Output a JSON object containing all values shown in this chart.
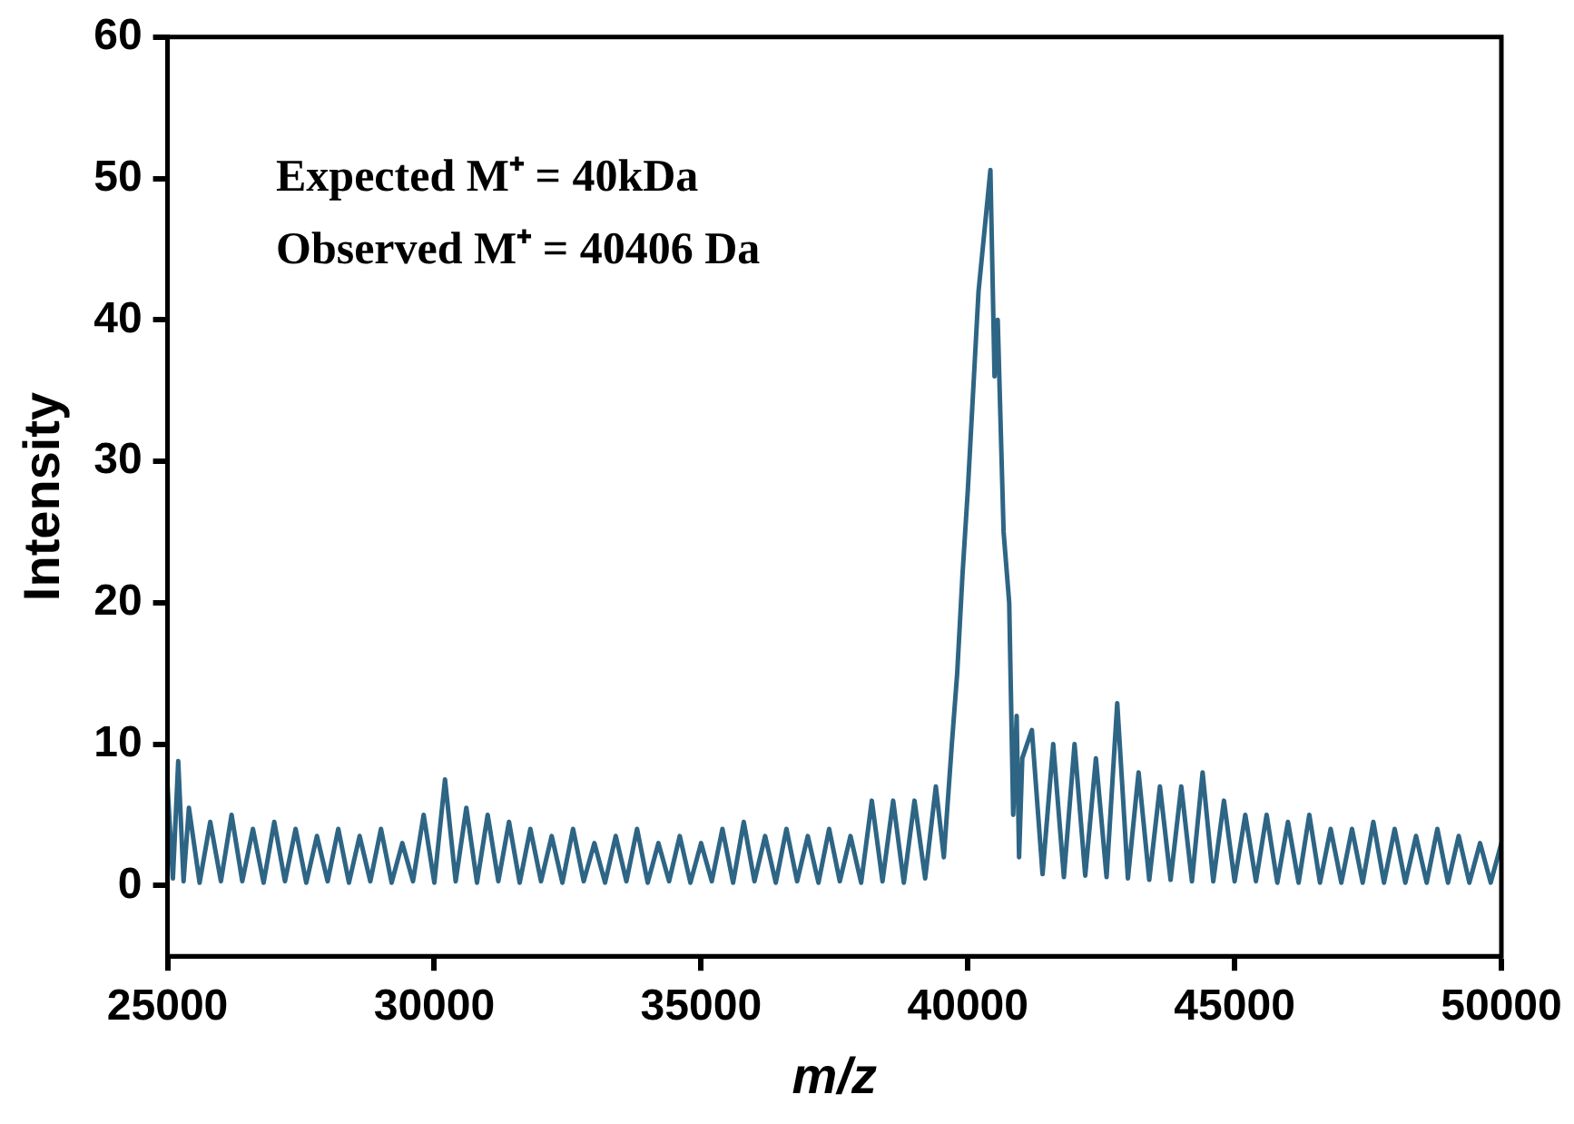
{
  "chart_data": {
    "type": "line",
    "xlabel": "m/z",
    "ylabel": "Intensity",
    "xlim": [
      25000,
      50000
    ],
    "xticks": [
      25000,
      30000,
      35000,
      40000,
      45000,
      50000
    ],
    "ylim": [
      -5,
      60
    ],
    "yticks": [
      0,
      10,
      20,
      30,
      40,
      50,
      60
    ],
    "grid": false,
    "legend": false,
    "marker": "none",
    "line_style": "solid",
    "annotations": [
      "Expected M⁺ = 40kDa",
      "Observed M⁺ = 40406 Da"
    ],
    "series": [
      {
        "color": "#2e6585",
        "x": [
          25000,
          25100,
          25200,
          25300,
          25400,
          25600,
          25800,
          26000,
          26200,
          26400,
          26600,
          26800,
          27000,
          27200,
          27400,
          27600,
          27800,
          28000,
          28200,
          28400,
          28600,
          28800,
          29000,
          29200,
          29400,
          29600,
          29800,
          30000,
          30200,
          30400,
          30600,
          30800,
          31000,
          31200,
          31400,
          31600,
          31800,
          32000,
          32200,
          32400,
          32600,
          32800,
          33000,
          33200,
          33400,
          33600,
          33800,
          34000,
          34200,
          34400,
          34600,
          34800,
          35000,
          35200,
          35400,
          35600,
          35800,
          36000,
          36200,
          36400,
          36600,
          36800,
          37000,
          37200,
          37400,
          37600,
          37800,
          38000,
          38200,
          38400,
          38600,
          38800,
          39000,
          39200,
          39400,
          39550,
          39700,
          39800,
          39900,
          40000,
          40100,
          40200,
          40423,
          40500,
          40560,
          40670,
          40775,
          40850,
          40915,
          40960,
          41020,
          41200,
          41400,
          41600,
          41800,
          42000,
          42200,
          42400,
          42600,
          42800,
          43000,
          43200,
          43400,
          43600,
          43800,
          44000,
          44200,
          44400,
          44600,
          44800,
          45000,
          45200,
          45400,
          45600,
          45800,
          46000,
          46200,
          46400,
          46600,
          46800,
          47000,
          47200,
          47400,
          47600,
          47800,
          48000,
          48200,
          48400,
          48600,
          48800,
          49000,
          49200,
          49400,
          49600,
          49800,
          50000
        ],
        "values": [
          7,
          0.5,
          8.8,
          0.3,
          5.5,
          0.2,
          4.5,
          0.3,
          5,
          0.3,
          4,
          0.2,
          4.5,
          0.3,
          4,
          0.2,
          3.5,
          0.3,
          4,
          0.2,
          3.5,
          0.3,
          4,
          0.2,
          3,
          0.3,
          5,
          0.2,
          7.5,
          0.3,
          5.5,
          0.2,
          5,
          0.3,
          4.5,
          0.2,
          4,
          0.3,
          3.5,
          0.2,
          4,
          0.3,
          3,
          0.2,
          3.5,
          0.3,
          4,
          0.2,
          3,
          0.3,
          3.5,
          0.2,
          3,
          0.3,
          4,
          0.2,
          4.5,
          0.3,
          3.5,
          0.2,
          4,
          0.3,
          3.5,
          0.2,
          4,
          0.3,
          3.5,
          0.2,
          6,
          0.3,
          6,
          0.2,
          6,
          0.5,
          7,
          2,
          10,
          15,
          22,
          28,
          35,
          42,
          50.6,
          36,
          40,
          25,
          20,
          5,
          12,
          2,
          9,
          11,
          0.8,
          10,
          0.6,
          10,
          0.7,
          9,
          0.6,
          12.9,
          0.5,
          8,
          0.4,
          7,
          0.4,
          7,
          0.3,
          8,
          0.3,
          6,
          0.3,
          5,
          0.3,
          5,
          0.2,
          4.5,
          0.2,
          5,
          0.2,
          4,
          0.2,
          4,
          0.2,
          4.5,
          0.2,
          4,
          0.2,
          3.5,
          0.2,
          4,
          0.2,
          3.5,
          0.2,
          3,
          0.2,
          3
        ]
      }
    ]
  }
}
